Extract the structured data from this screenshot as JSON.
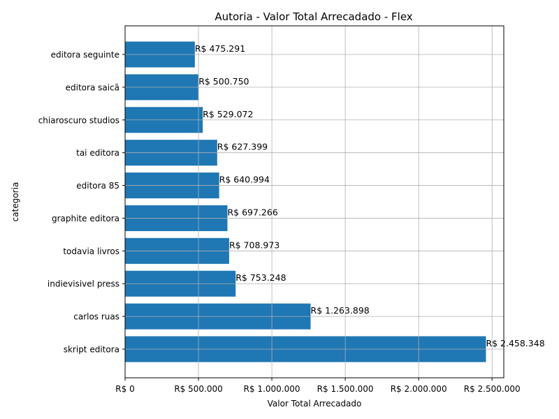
{
  "chart_data": {
    "type": "bar",
    "orientation": "horizontal",
    "title": "Autoria - Valor Total Arrecadado - Flex",
    "xlabel": "Valor Total Arrecadado",
    "ylabel": "categoria",
    "xlim": [
      0,
      2580000
    ],
    "grid": true,
    "color": "#1f77b4",
    "x_ticks": [
      {
        "value": 0,
        "label": "R$ 0"
      },
      {
        "value": 500000,
        "label": "R$ 500.000"
      },
      {
        "value": 1000000,
        "label": "R$ 1.000.000"
      },
      {
        "value": 1500000,
        "label": "R$ 1.500.000"
      },
      {
        "value": 2000000,
        "label": "R$ 2.000.000"
      },
      {
        "value": 2500000,
        "label": "R$ 2.500.000"
      }
    ],
    "categories": [
      "skript editora",
      "carlos ruas",
      "indievisivel press",
      "todavia livros",
      "graphite editora",
      "editora 85",
      "tai editora",
      "chiaroscuro studios",
      "editora saicã",
      "editora seguinte"
    ],
    "values": [
      2458348,
      1263898,
      753248,
      708973,
      697266,
      640994,
      627399,
      529072,
      500750,
      475291
    ],
    "value_labels": [
      "R$ 2.458.348",
      "R$ 1.263.898",
      "R$ 753.248",
      "R$ 708.973",
      "R$ 697.266",
      "R$ 640.994",
      "R$ 627.399",
      "R$ 529.072",
      "R$ 500.750",
      "R$ 475.291"
    ]
  }
}
